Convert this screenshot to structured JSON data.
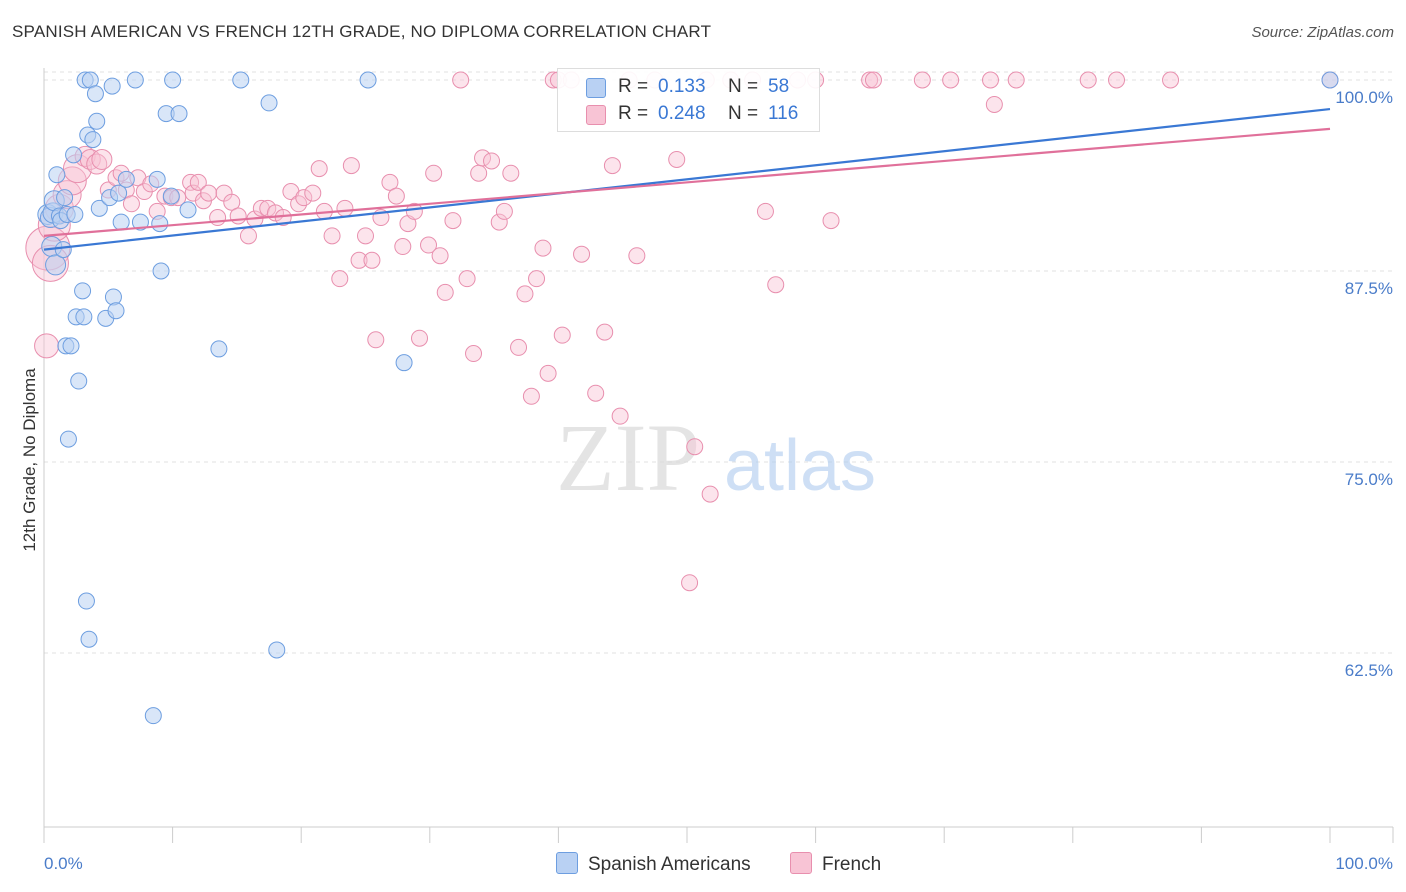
{
  "title": "SPANISH AMERICAN VS FRENCH 12TH GRADE, NO DIPLOMA CORRELATION CHART",
  "source": "Source: ZipAtlas.com",
  "watermark": {
    "zip": "ZIP",
    "atlas": "atlas"
  },
  "colors": {
    "blue_fill": "#b9d1f3",
    "blue_stroke": "#6d9ee0",
    "blue_line": "#3a78d4",
    "pink_fill": "#f8c4d5",
    "pink_stroke": "#e88fae",
    "pink_line": "#e0709a",
    "axis_text": "#4a7cc9",
    "grid": "#e2e2e2"
  },
  "legend": {
    "rows": [
      {
        "series": "blue",
        "r_label": "R =",
        "r_value": "0.133",
        "n_label": "N =",
        "n_value": "58"
      },
      {
        "series": "pink",
        "r_label": "R =",
        "r_value": "0.248",
        "n_label": "N =",
        "n_value": "116"
      }
    ],
    "bottom": [
      {
        "series": "blue",
        "label": "Spanish Americans"
      },
      {
        "series": "pink",
        "label": "French"
      }
    ]
  },
  "chart_data": {
    "type": "scatter",
    "title": "SPANISH AMERICAN VS FRENCH 12TH GRADE, NO DIPLOMA CORRELATION CHART",
    "xlabel": "",
    "ylabel": "12th Grade, No Diploma",
    "xlim": [
      0,
      100
    ],
    "ylim": [
      50,
      101.2
    ],
    "x_tick_labels": [
      {
        "value": 0,
        "label": "0.0%"
      },
      {
        "value": 100,
        "label": "100.0%"
      }
    ],
    "y_tick_labels": [
      {
        "value": 100,
        "label": "100.0%"
      },
      {
        "value": 87.5,
        "label": "87.5%"
      },
      {
        "value": 75,
        "label": "75.0%"
      },
      {
        "value": 62.5,
        "label": "62.5%"
      }
    ],
    "series": [
      {
        "name": "Spanish Americans",
        "color": "blue",
        "r": 0.133,
        "n": 58,
        "trend": {
          "x0": 0,
          "y0": 88.9,
          "x1": 100,
          "y1": 98.1
        },
        "points": [
          {
            "x": 0.3,
            "y": 91.2,
            "s": 10
          },
          {
            "x": 0.5,
            "y": 91.0,
            "s": 10
          },
          {
            "x": 0.6,
            "y": 89.1,
            "s": 10
          },
          {
            "x": 0.7,
            "y": 91.3,
            "s": 10
          },
          {
            "x": 0.8,
            "y": 92.1,
            "s": 10
          },
          {
            "x": 0.9,
            "y": 87.9,
            "s": 10
          },
          {
            "x": 1.0,
            "y": 93.8,
            "s": 8
          },
          {
            "x": 1.2,
            "y": 91.1,
            "s": 8
          },
          {
            "x": 1.3,
            "y": 90.8,
            "s": 8
          },
          {
            "x": 1.5,
            "y": 88.9,
            "s": 8
          },
          {
            "x": 1.6,
            "y": 92.3,
            "s": 8
          },
          {
            "x": 1.8,
            "y": 91.2,
            "s": 8
          },
          {
            "x": 1.7,
            "y": 82.6,
            "s": 8
          },
          {
            "x": 1.9,
            "y": 76.5,
            "s": 8
          },
          {
            "x": 2.1,
            "y": 82.6,
            "s": 8
          },
          {
            "x": 2.3,
            "y": 95.1,
            "s": 8
          },
          {
            "x": 2.4,
            "y": 91.2,
            "s": 8
          },
          {
            "x": 2.5,
            "y": 84.5,
            "s": 8
          },
          {
            "x": 2.7,
            "y": 80.3,
            "s": 8
          },
          {
            "x": 3.0,
            "y": 86.2,
            "s": 8
          },
          {
            "x": 3.1,
            "y": 84.5,
            "s": 8
          },
          {
            "x": 3.2,
            "y": 100.0,
            "s": 8
          },
          {
            "x": 3.3,
            "y": 65.9,
            "s": 8
          },
          {
            "x": 3.4,
            "y": 96.4,
            "s": 8
          },
          {
            "x": 3.5,
            "y": 63.4,
            "s": 8
          },
          {
            "x": 3.6,
            "y": 100.0,
            "s": 8
          },
          {
            "x": 3.8,
            "y": 96.1,
            "s": 8
          },
          {
            "x": 4.0,
            "y": 99.1,
            "s": 8
          },
          {
            "x": 4.1,
            "y": 97.3,
            "s": 8
          },
          {
            "x": 4.3,
            "y": 91.6,
            "s": 8
          },
          {
            "x": 4.8,
            "y": 84.4,
            "s": 8
          },
          {
            "x": 5.1,
            "y": 92.3,
            "s": 8
          },
          {
            "x": 5.3,
            "y": 99.6,
            "s": 8
          },
          {
            "x": 5.4,
            "y": 85.8,
            "s": 8
          },
          {
            "x": 5.6,
            "y": 84.9,
            "s": 8
          },
          {
            "x": 5.8,
            "y": 92.6,
            "s": 8
          },
          {
            "x": 6.0,
            "y": 90.7,
            "s": 8
          },
          {
            "x": 6.4,
            "y": 93.5,
            "s": 8
          },
          {
            "x": 7.1,
            "y": 100.0,
            "s": 8
          },
          {
            "x": 7.5,
            "y": 90.7,
            "s": 8
          },
          {
            "x": 8.5,
            "y": 58.4,
            "s": 8
          },
          {
            "x": 8.8,
            "y": 93.5,
            "s": 8
          },
          {
            "x": 9.0,
            "y": 90.6,
            "s": 8
          },
          {
            "x": 9.1,
            "y": 87.5,
            "s": 8
          },
          {
            "x": 9.5,
            "y": 97.8,
            "s": 8
          },
          {
            "x": 9.9,
            "y": 92.4,
            "s": 8
          },
          {
            "x": 10.0,
            "y": 100.0,
            "s": 8
          },
          {
            "x": 10.5,
            "y": 97.8,
            "s": 8
          },
          {
            "x": 11.2,
            "y": 91.5,
            "s": 8
          },
          {
            "x": 13.6,
            "y": 82.4,
            "s": 8
          },
          {
            "x": 15.3,
            "y": 100.0,
            "s": 8
          },
          {
            "x": 17.5,
            "y": 98.5,
            "s": 8
          },
          {
            "x": 18.1,
            "y": 62.7,
            "s": 8
          },
          {
            "x": 25.2,
            "y": 100.0,
            "s": 8
          },
          {
            "x": 28.0,
            "y": 81.5,
            "s": 8
          },
          {
            "x": 100.0,
            "y": 100.0,
            "s": 8
          }
        ]
      },
      {
        "name": "French",
        "color": "pink",
        "r": 0.248,
        "n": 116,
        "trend": {
          "x0": 0,
          "y0": 89.8,
          "x1": 100,
          "y1": 96.8
        },
        "points": [
          {
            "x": 0.2,
            "y": 82.6,
            "s": 12
          },
          {
            "x": 0.3,
            "y": 89.0,
            "s": 22
          },
          {
            "x": 0.5,
            "y": 88.0,
            "s": 18
          },
          {
            "x": 0.8,
            "y": 90.5,
            "s": 16
          },
          {
            "x": 1.2,
            "y": 91.6,
            "s": 14
          },
          {
            "x": 1.8,
            "y": 92.5,
            "s": 14
          },
          {
            "x": 2.2,
            "y": 93.4,
            "s": 14
          },
          {
            "x": 2.6,
            "y": 94.2,
            "s": 14
          },
          {
            "x": 3.2,
            "y": 95.0,
            "s": 10
          },
          {
            "x": 3.6,
            "y": 94.8,
            "s": 10
          },
          {
            "x": 4.1,
            "y": 94.5,
            "s": 10
          },
          {
            "x": 4.5,
            "y": 94.8,
            "s": 10
          },
          {
            "x": 5.0,
            "y": 92.8,
            "s": 8
          },
          {
            "x": 5.6,
            "y": 93.6,
            "s": 8
          },
          {
            "x": 6.0,
            "y": 93.9,
            "s": 8
          },
          {
            "x": 6.4,
            "y": 92.8,
            "s": 8
          },
          {
            "x": 6.8,
            "y": 91.9,
            "s": 8
          },
          {
            "x": 7.3,
            "y": 93.6,
            "s": 8
          },
          {
            "x": 7.8,
            "y": 92.7,
            "s": 8
          },
          {
            "x": 8.3,
            "y": 93.2,
            "s": 8
          },
          {
            "x": 8.8,
            "y": 91.4,
            "s": 8
          },
          {
            "x": 9.4,
            "y": 92.4,
            "s": 8
          },
          {
            "x": 9.9,
            "y": 92.3,
            "s": 8
          },
          {
            "x": 10.4,
            "y": 92.3,
            "s": 8
          },
          {
            "x": 11.4,
            "y": 93.3,
            "s": 8
          },
          {
            "x": 11.6,
            "y": 92.6,
            "s": 8
          },
          {
            "x": 12.0,
            "y": 93.3,
            "s": 8
          },
          {
            "x": 12.4,
            "y": 92.1,
            "s": 8
          },
          {
            "x": 12.8,
            "y": 92.6,
            "s": 8
          },
          {
            "x": 13.5,
            "y": 91.0,
            "s": 8
          },
          {
            "x": 14.0,
            "y": 92.6,
            "s": 8
          },
          {
            "x": 14.6,
            "y": 92.0,
            "s": 8
          },
          {
            "x": 15.1,
            "y": 91.1,
            "s": 8
          },
          {
            "x": 15.9,
            "y": 89.8,
            "s": 8
          },
          {
            "x": 16.4,
            "y": 90.9,
            "s": 8
          },
          {
            "x": 16.9,
            "y": 91.6,
            "s": 8
          },
          {
            "x": 17.4,
            "y": 91.6,
            "s": 8
          },
          {
            "x": 18.0,
            "y": 91.3,
            "s": 8
          },
          {
            "x": 18.6,
            "y": 91.0,
            "s": 8
          },
          {
            "x": 19.2,
            "y": 92.7,
            "s": 8
          },
          {
            "x": 19.8,
            "y": 91.9,
            "s": 8
          },
          {
            "x": 20.2,
            "y": 92.3,
            "s": 8
          },
          {
            "x": 20.9,
            "y": 92.6,
            "s": 8
          },
          {
            "x": 21.4,
            "y": 94.2,
            "s": 8
          },
          {
            "x": 21.8,
            "y": 91.4,
            "s": 8
          },
          {
            "x": 22.4,
            "y": 89.8,
            "s": 8
          },
          {
            "x": 23.0,
            "y": 87.0,
            "s": 8
          },
          {
            "x": 23.4,
            "y": 91.6,
            "s": 8
          },
          {
            "x": 23.9,
            "y": 94.4,
            "s": 8
          },
          {
            "x": 24.5,
            "y": 88.2,
            "s": 8
          },
          {
            "x": 25.0,
            "y": 89.8,
            "s": 8
          },
          {
            "x": 25.5,
            "y": 88.2,
            "s": 8
          },
          {
            "x": 25.8,
            "y": 83.0,
            "s": 8
          },
          {
            "x": 26.2,
            "y": 91.0,
            "s": 8
          },
          {
            "x": 26.9,
            "y": 93.3,
            "s": 8
          },
          {
            "x": 27.4,
            "y": 92.4,
            "s": 8
          },
          {
            "x": 27.9,
            "y": 89.1,
            "s": 8
          },
          {
            "x": 28.3,
            "y": 90.6,
            "s": 8
          },
          {
            "x": 28.8,
            "y": 91.4,
            "s": 8
          },
          {
            "x": 29.2,
            "y": 83.1,
            "s": 8
          },
          {
            "x": 29.9,
            "y": 89.2,
            "s": 8
          },
          {
            "x": 30.3,
            "y": 93.9,
            "s": 8
          },
          {
            "x": 30.8,
            "y": 88.5,
            "s": 8
          },
          {
            "x": 31.2,
            "y": 86.1,
            "s": 8
          },
          {
            "x": 31.8,
            "y": 90.8,
            "s": 8
          },
          {
            "x": 32.4,
            "y": 100.0,
            "s": 8
          },
          {
            "x": 32.9,
            "y": 87.0,
            "s": 8
          },
          {
            "x": 33.4,
            "y": 82.1,
            "s": 8
          },
          {
            "x": 33.8,
            "y": 93.9,
            "s": 8
          },
          {
            "x": 34.1,
            "y": 94.9,
            "s": 8
          },
          {
            "x": 34.8,
            "y": 94.7,
            "s": 8
          },
          {
            "x": 35.4,
            "y": 90.7,
            "s": 8
          },
          {
            "x": 35.8,
            "y": 91.4,
            "s": 8
          },
          {
            "x": 36.3,
            "y": 93.9,
            "s": 8
          },
          {
            "x": 36.9,
            "y": 82.5,
            "s": 8
          },
          {
            "x": 37.4,
            "y": 86.0,
            "s": 8
          },
          {
            "x": 37.9,
            "y": 79.3,
            "s": 8
          },
          {
            "x": 38.3,
            "y": 87.0,
            "s": 8
          },
          {
            "x": 38.8,
            "y": 89.0,
            "s": 8
          },
          {
            "x": 39.2,
            "y": 80.8,
            "s": 8
          },
          {
            "x": 39.6,
            "y": 100.0,
            "s": 8
          },
          {
            "x": 40.0,
            "y": 100.0,
            "s": 8
          },
          {
            "x": 40.3,
            "y": 83.3,
            "s": 8
          },
          {
            "x": 41.0,
            "y": 100.0,
            "s": 8
          },
          {
            "x": 41.8,
            "y": 88.6,
            "s": 8
          },
          {
            "x": 42.9,
            "y": 79.5,
            "s": 8
          },
          {
            "x": 43.6,
            "y": 83.5,
            "s": 8
          },
          {
            "x": 44.2,
            "y": 94.4,
            "s": 8
          },
          {
            "x": 44.8,
            "y": 78.0,
            "s": 8
          },
          {
            "x": 45.5,
            "y": 100.0,
            "s": 8
          },
          {
            "x": 46.1,
            "y": 88.5,
            "s": 8
          },
          {
            "x": 47.5,
            "y": 100.0,
            "s": 8
          },
          {
            "x": 49.2,
            "y": 94.8,
            "s": 8
          },
          {
            "x": 50.2,
            "y": 67.1,
            "s": 8
          },
          {
            "x": 50.6,
            "y": 76.0,
            "s": 8
          },
          {
            "x": 51.5,
            "y": 100.0,
            "s": 8
          },
          {
            "x": 51.8,
            "y": 72.9,
            "s": 8
          },
          {
            "x": 53.4,
            "y": 100.0,
            "s": 8
          },
          {
            "x": 55.1,
            "y": 100.0,
            "s": 8
          },
          {
            "x": 56.1,
            "y": 91.4,
            "s": 8
          },
          {
            "x": 56.9,
            "y": 86.6,
            "s": 8
          },
          {
            "x": 58.6,
            "y": 100.0,
            "s": 8
          },
          {
            "x": 60.0,
            "y": 100.0,
            "s": 8
          },
          {
            "x": 61.2,
            "y": 90.8,
            "s": 8
          },
          {
            "x": 64.2,
            "y": 100.0,
            "s": 8
          },
          {
            "x": 64.5,
            "y": 100.0,
            "s": 8
          },
          {
            "x": 68.3,
            "y": 100.0,
            "s": 8
          },
          {
            "x": 70.5,
            "y": 100.0,
            "s": 8
          },
          {
            "x": 73.6,
            "y": 100.0,
            "s": 8
          },
          {
            "x": 73.9,
            "y": 98.4,
            "s": 8
          },
          {
            "x": 75.6,
            "y": 100.0,
            "s": 8
          },
          {
            "x": 81.2,
            "y": 100.0,
            "s": 8
          },
          {
            "x": 83.4,
            "y": 100.0,
            "s": 8
          },
          {
            "x": 87.6,
            "y": 100.0,
            "s": 8
          },
          {
            "x": 100.0,
            "y": 100.0,
            "s": 8
          }
        ]
      }
    ]
  }
}
